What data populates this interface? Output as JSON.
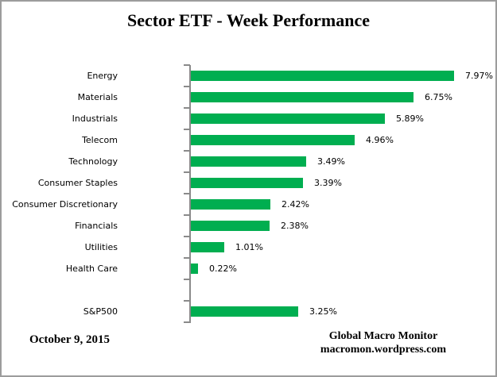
{
  "title": "Sector ETF - Week Performance",
  "footer": {
    "date": "October 9, 2015",
    "source_line1": "Global Macro Monitor",
    "source_line2": "macromon.wordpress.com"
  },
  "chart_data": {
    "type": "bar",
    "orientation": "horizontal",
    "title": "Sector ETF - Week Performance",
    "categories": [
      "Energy",
      "Materials",
      "Industrials",
      "Telecom",
      "Technology",
      "Consumer Staples",
      "Consumer Discretionary",
      "Financials",
      "Utilities",
      "Health Care",
      "",
      "S&P500"
    ],
    "values": [
      7.97,
      6.75,
      5.89,
      4.96,
      3.49,
      3.39,
      2.42,
      2.38,
      1.01,
      0.22,
      null,
      3.25
    ],
    "data_labels": [
      "7.97%",
      "6.75%",
      "5.89%",
      "4.96%",
      "3.49%",
      "3.39%",
      "2.42%",
      "2.38%",
      "1.01%",
      "0.22%",
      "",
      "3.25%"
    ],
    "xlabel": "",
    "ylabel": "",
    "xlim": [
      0,
      9.4
    ],
    "grid": false,
    "legend": false,
    "data_label_position": "outside-end",
    "bar_color": "#00AE50",
    "axis_color": "#8a8a8a",
    "text_color": "#000000"
  }
}
